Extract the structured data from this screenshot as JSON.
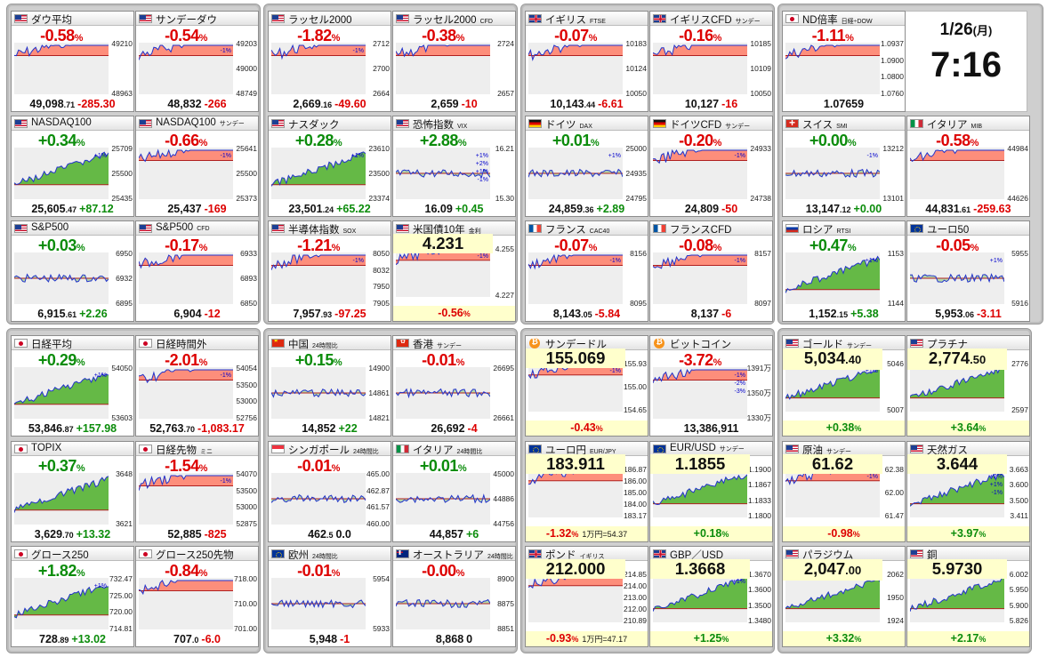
{
  "clock": {
    "date": "1/26",
    "weekday": "(月)",
    "time": "7:16"
  },
  "colors": {
    "up": "#0b8c0b",
    "down": "#dd0000",
    "fill_up": "#4caf28",
    "fill_down": "#ff7c66",
    "line": "#2233cc",
    "highlight": "#ffffcc"
  },
  "cards": [
    {
      "flag": "us",
      "name": "ダウ平均",
      "sub": "",
      "pct": "-0.58",
      "pv": "49,098",
      "ps": ".71",
      "ch": "-285.30",
      "axis": [
        "49210",
        "48963"
      ],
      "ax": [],
      "trend": -1
    },
    {
      "flag": "us",
      "name": "サンデーダウ",
      "sub": "",
      "pct": "-0.54",
      "pv": "48,832",
      "ps": "",
      "ch": "-266",
      "axis": [
        "49203",
        "49000",
        "48749"
      ],
      "ax": [
        "-1%"
      ],
      "trend": -1
    },
    {
      "flag": "us",
      "name": "ラッセル2000",
      "sub": "",
      "pct": "-1.82",
      "pv": "2,669",
      "ps": ".16",
      "ch": "-49.60",
      "axis": [
        "2712",
        "2700",
        "2664"
      ],
      "ax": [
        "-1%"
      ],
      "trend": -1
    },
    {
      "flag": "us",
      "name": "ラッセル2000",
      "sub": "CFD",
      "pct": "-0.38",
      "pv": "2,659",
      "ps": "",
      "ch": "-10",
      "axis": [
        "2724",
        "2657"
      ],
      "ax": [],
      "trend": -1
    },
    {
      "flag": "uk",
      "name": "イギリス",
      "sub": "FTSE",
      "pct": "-0.07",
      "pv": "10,143",
      "ps": ".44",
      "ch": "-6.61",
      "axis": [
        "10183",
        "10124",
        "10050"
      ],
      "ax": [],
      "trend": -1
    },
    {
      "flag": "uk",
      "name": "イギリスCFD",
      "sub": "サンデー",
      "pct": "-0.16",
      "pv": "10,127",
      "ps": "",
      "ch": "-16",
      "axis": [
        "10185",
        "10109",
        "10050"
      ],
      "ax": [],
      "trend": -1
    },
    {
      "flag": "jp",
      "name": "ND倍率",
      "sub": "日経÷DOW",
      "pct": "-1.11",
      "pv": "1.07659",
      "ps": "",
      "ch": "",
      "axis": [
        "1.0937",
        "1.0900",
        "1.0800",
        "1.0760"
      ],
      "ax": [],
      "trend": -1
    },
    {
      "flag": "us",
      "name": "NASDAQ100",
      "sub": "",
      "pct": "+0.34",
      "pv": "25,605",
      "ps": ".47",
      "ch": "+87.12",
      "axis": [
        "25709",
        "25500",
        "25435"
      ],
      "ax": [
        "+1%"
      ],
      "trend": 1
    },
    {
      "flag": "us",
      "name": "NASDAQ100",
      "sub": "サンデー",
      "pct": "-0.66",
      "pv": "25,437",
      "ps": "",
      "ch": "-169",
      "axis": [
        "25641",
        "25500",
        "25373"
      ],
      "ax": [
        "-1%"
      ],
      "trend": -1
    },
    {
      "flag": "us",
      "name": "ナスダック",
      "sub": "",
      "pct": "+0.28",
      "pv": "23,501",
      "ps": ".24",
      "ch": "+65.22",
      "axis": [
        "23610",
        "23500",
        "23374"
      ],
      "ax": [
        "+1%"
      ],
      "trend": 1
    },
    {
      "flag": "us",
      "name": "恐怖指数",
      "sub": "VIX",
      "pct": "+2.88",
      "pv": "16.09",
      "ps": "",
      "ch": "+0.45",
      "axis": [
        "16.21",
        "15.30"
      ],
      "ax": [
        "+1%",
        "+2%",
        "+1%",
        "-1%"
      ],
      "trend": 0
    },
    {
      "flag": "de",
      "name": "ドイツ",
      "sub": "DAX",
      "pct": "+0.01",
      "pv": "24,859",
      "ps": ".36",
      "ch": "+2.89",
      "axis": [
        "25000",
        "24935",
        "24795"
      ],
      "ax": [
        "+1%"
      ],
      "trend": 0
    },
    {
      "flag": "de",
      "name": "ドイツCFD",
      "sub": "サンデー",
      "pct": "-0.20",
      "pv": "24,809",
      "ps": "",
      "ch": "-50",
      "axis": [
        "24933",
        "24738"
      ],
      "ax": [
        "-1%"
      ],
      "trend": -1
    },
    {
      "flag": "ch",
      "name": "スイス",
      "sub": "SMI",
      "pct": "+0.00",
      "pv": "13,147",
      "ps": ".12",
      "ch": "+0.00",
      "axis": [
        "13212",
        "13101"
      ],
      "ax": [
        "-1%"
      ],
      "trend": 0
    },
    {
      "flag": "it",
      "name": "イタリア",
      "sub": "MIB",
      "pct": "-0.58",
      "pv": "44,831",
      "ps": ".61",
      "ch": "-259.63",
      "axis": [
        "44984",
        "44626"
      ],
      "ax": [],
      "trend": -1
    },
    {
      "flag": "us",
      "name": "S&P500",
      "sub": "",
      "pct": "+0.03",
      "pv": "6,915",
      "ps": ".61",
      "ch": "+2.26",
      "axis": [
        "6950",
        "6932",
        "6895"
      ],
      "ax": [],
      "trend": 0
    },
    {
      "flag": "us",
      "name": "S&P500",
      "sub": "CFD",
      "pct": "-0.17",
      "pv": "6,904",
      "ps": "",
      "ch": "-12",
      "axis": [
        "6933",
        "6893",
        "6850"
      ],
      "ax": [],
      "trend": -1
    },
    {
      "flag": "us",
      "name": "半導体指数",
      "sub": "SOX",
      "pct": "-1.21",
      "pv": "7,957",
      "ps": ".93",
      "ch": "-97.25",
      "axis": [
        "8050",
        "8032",
        "7950",
        "7905"
      ],
      "ax": [
        "-1%"
      ],
      "trend": -1
    },
    {
      "flag": "us",
      "name": "米国債10年",
      "sub": "金利",
      "pct": "-0.56",
      "pv": "4.231",
      "ps": "",
      "ch": "",
      "axis": [
        "4.255",
        "4.227"
      ],
      "ax": [
        "-1%"
      ],
      "trend": -1,
      "price": true
    },
    {
      "flag": "fr",
      "name": "フランス",
      "sub": "CAC40",
      "pct": "-0.07",
      "pv": "8,143",
      "ps": ".05",
      "ch": "-5.84",
      "axis": [
        "8156",
        "8095"
      ],
      "ax": [
        "-1%"
      ],
      "trend": -1
    },
    {
      "flag": "fr",
      "name": "フランスCFD",
      "sub": "",
      "pct": "-0.08",
      "pv": "8,137",
      "ps": "",
      "ch": "-6",
      "axis": [
        "8157",
        "8097"
      ],
      "ax": [
        "-1%"
      ],
      "trend": -1
    },
    {
      "flag": "ru",
      "name": "ロシア",
      "sub": "RTSI",
      "pct": "+0.47",
      "pv": "1,152",
      "ps": ".15",
      "ch": "+5.38",
      "axis": [
        "1153",
        "1144"
      ],
      "ax": [
        "+1%"
      ],
      "trend": 1
    },
    {
      "flag": "eu",
      "name": "ユーロ50",
      "sub": "",
      "pct": "-0.05",
      "pv": "5,953",
      "ps": ".06",
      "ch": "-3.11",
      "axis": [
        "5955",
        "5916"
      ],
      "ax": [
        "+1%"
      ],
      "trend": 0
    },
    {
      "flag": "jp",
      "name": "日経平均",
      "sub": "",
      "pct": "+0.29",
      "pv": "53,846",
      "ps": ".87",
      "ch": "+157.98",
      "axis": [
        "54050",
        "53603"
      ],
      "ax": [
        "+1%"
      ],
      "trend": 1
    },
    {
      "flag": "jp",
      "name": "日経時間外",
      "sub": "",
      "pct": "-2.01",
      "pv": "52,763",
      "ps": ".70",
      "ch": "-1,083.17",
      "axis": [
        "54054",
        "53500",
        "53000",
        "52756"
      ],
      "ax": [
        "-1%"
      ],
      "trend": -1
    },
    {
      "flag": "cn",
      "name": "中国",
      "sub": "24時間比",
      "pct": "+0.15",
      "pv": "14,852",
      "ps": "",
      "ch": "+22",
      "axis": [
        "14900",
        "14861",
        "14821"
      ],
      "ax": [],
      "trend": 0
    },
    {
      "flag": "hk",
      "name": "香港",
      "sub": "サンデー",
      "pct": "-0.01",
      "pv": "26,692",
      "ps": "",
      "ch": "-4",
      "axis": [
        "26695",
        "26661"
      ],
      "ax": [],
      "trend": 0
    },
    {
      "flag": "btc",
      "name": "サンデードル",
      "sub": "",
      "pct": "-0.43",
      "pv": "155.069",
      "ps": "",
      "ch": "",
      "axis": [
        "155.93",
        "155.00",
        "154.65"
      ],
      "ax": [
        "-1%"
      ],
      "trend": -1,
      "price": true
    },
    {
      "flag": "btc",
      "name": "ビットコイン",
      "sub": "",
      "pct": "-3.72",
      "pv": "13,386,911",
      "ps": "",
      "ch": "",
      "axis": [
        "1391万",
        "1350万",
        "1330万"
      ],
      "ax": [
        "-1%",
        "-2%",
        "-3%"
      ],
      "trend": -1
    },
    {
      "flag": "us",
      "name": "ゴールド",
      "sub": "サンデー",
      "pct": "+0.38",
      "pv": "5,034",
      "ps": ".40",
      "ch": "",
      "axis": [
        "5046",
        "5007"
      ],
      "ax": [
        "+1%"
      ],
      "trend": 1,
      "price": true
    },
    {
      "flag": "us",
      "name": "プラチナ",
      "sub": "",
      "pct": "+3.64",
      "pv": "2,774",
      "ps": ".50",
      "ch": "",
      "axis": [
        "2776",
        "2597"
      ],
      "ax": [],
      "trend": 1,
      "price": true
    },
    {
      "flag": "jp",
      "name": "TOPIX",
      "sub": "",
      "pct": "+0.37",
      "pv": "3,629",
      "ps": ".70",
      "ch": "+13.32",
      "axis": [
        "3648",
        "3621"
      ],
      "ax": [],
      "trend": 1
    },
    {
      "flag": "jp",
      "name": "日経先物",
      "sub": "ミニ",
      "pct": "-1.54",
      "pv": "52,885",
      "ps": "",
      "ch": "-825",
      "axis": [
        "54070",
        "53500",
        "53000",
        "52875"
      ],
      "ax": [
        "-1%"
      ],
      "trend": -1
    },
    {
      "flag": "sg",
      "name": "シンガポール",
      "sub": "24時間比",
      "pct": "-0.01",
      "pv": "462",
      "ps": ".5",
      "ch": "0.0",
      "axis": [
        "465.00",
        "462.87",
        "461.57",
        "460.00"
      ],
      "ax": [],
      "trend": 0
    },
    {
      "flag": "it",
      "name": "イタリア",
      "sub": "24時間比",
      "pct": "+0.01",
      "pv": "44,857",
      "ps": "",
      "ch": "+6",
      "axis": [
        "45000",
        "44886",
        "44756"
      ],
      "ax": [],
      "trend": 0
    },
    {
      "flag": "eu",
      "name": "ユーロ円",
      "sub": "EUR/JPY",
      "pct": "-1.32",
      "pv": "183.911",
      "ps": "",
      "ch": "",
      "axis": [
        "186.87",
        "186.00",
        "185.00",
        "184.00",
        "183.17"
      ],
      "ax": [],
      "trend": -1,
      "price": true,
      "extra": "1万円=54.37"
    },
    {
      "flag": "eu",
      "name": "EUR/USD",
      "sub": "サンデー",
      "pct": "+0.18",
      "pv": "1.1855",
      "ps": "",
      "ch": "",
      "axis": [
        "1.1900",
        "1.1867",
        "1.1833",
        "1.1800"
      ],
      "ax": [],
      "trend": 1,
      "price": true
    },
    {
      "flag": "us",
      "name": "原油",
      "sub": "サンデー",
      "pct": "-0.98",
      "pv": "61.62",
      "ps": "",
      "ch": "",
      "axis": [
        "62.38",
        "62.00",
        "61.47"
      ],
      "ax": [
        "-1%"
      ],
      "trend": -1,
      "price": true
    },
    {
      "flag": "us",
      "name": "天然ガス",
      "sub": "",
      "pct": "+3.97",
      "pv": "3.644",
      "ps": "",
      "ch": "",
      "axis": [
        "3.663",
        "3.600",
        "3.500",
        "3.411"
      ],
      "ax": [
        "+2%",
        "+1%",
        "-1%"
      ],
      "trend": 1,
      "price": true
    },
    {
      "flag": "jp",
      "name": "グロース250",
      "sub": "",
      "pct": "+1.82",
      "pv": "728",
      "ps": ".89",
      "ch": "+13.02",
      "axis": [
        "732.47",
        "725.00",
        "720.00",
        "714.81"
      ],
      "ax": [
        "+1%"
      ],
      "trend": 1
    },
    {
      "flag": "jp",
      "name": "グロース250先物",
      "sub": "",
      "pct": "-0.84",
      "pv": "707",
      "ps": ".0",
      "ch": "-6.0",
      "axis": [
        "718.00",
        "710.00",
        "701.00"
      ],
      "ax": [],
      "trend": -1
    },
    {
      "flag": "eu",
      "name": "欧州",
      "sub": "24時間比",
      "pct": "-0.01",
      "pv": "5,948",
      "ps": "",
      "ch": "-1",
      "axis": [
        "5954",
        "5933"
      ],
      "ax": [],
      "trend": 0
    },
    {
      "flag": "au",
      "name": "オーストラリア",
      "sub": "24時間比",
      "pct": "-0.00",
      "pv": "8,868",
      "ps": "",
      "ch": "0",
      "axis": [
        "8900",
        "8875",
        "8851"
      ],
      "ax": [],
      "trend": 0
    },
    {
      "flag": "uk",
      "name": "ポンド",
      "sub": "イギリス",
      "pct": "-0.93",
      "pv": "212.000",
      "ps": "",
      "ch": "",
      "axis": [
        "214.85",
        "214.00",
        "213.00",
        "212.00",
        "210.89"
      ],
      "ax": [],
      "trend": -1,
      "price": true,
      "extra": "1万円=47.17"
    },
    {
      "flag": "uk",
      "name": "GBP／USD",
      "sub": "",
      "pct": "+1.25",
      "pv": "1.3668",
      "ps": "",
      "ch": "",
      "axis": [
        "1.3670",
        "1.3600",
        "1.3500",
        "1.3480"
      ],
      "ax": [
        "+1%"
      ],
      "trend": 1,
      "price": true
    },
    {
      "flag": "us",
      "name": "パラジウム",
      "sub": "",
      "pct": "+3.32",
      "pv": "2,047",
      "ps": ".00",
      "ch": "",
      "axis": [
        "2062",
        "1950",
        "1924"
      ],
      "ax": [],
      "trend": 1,
      "price": true
    },
    {
      "flag": "us",
      "name": "銅",
      "sub": "",
      "pct": "+2.17",
      "pv": "5.9730",
      "ps": "",
      "ch": "",
      "axis": [
        "6.002",
        "5.950",
        "5.900",
        "5.826"
      ],
      "ax": [],
      "trend": 1,
      "price": true
    }
  ]
}
